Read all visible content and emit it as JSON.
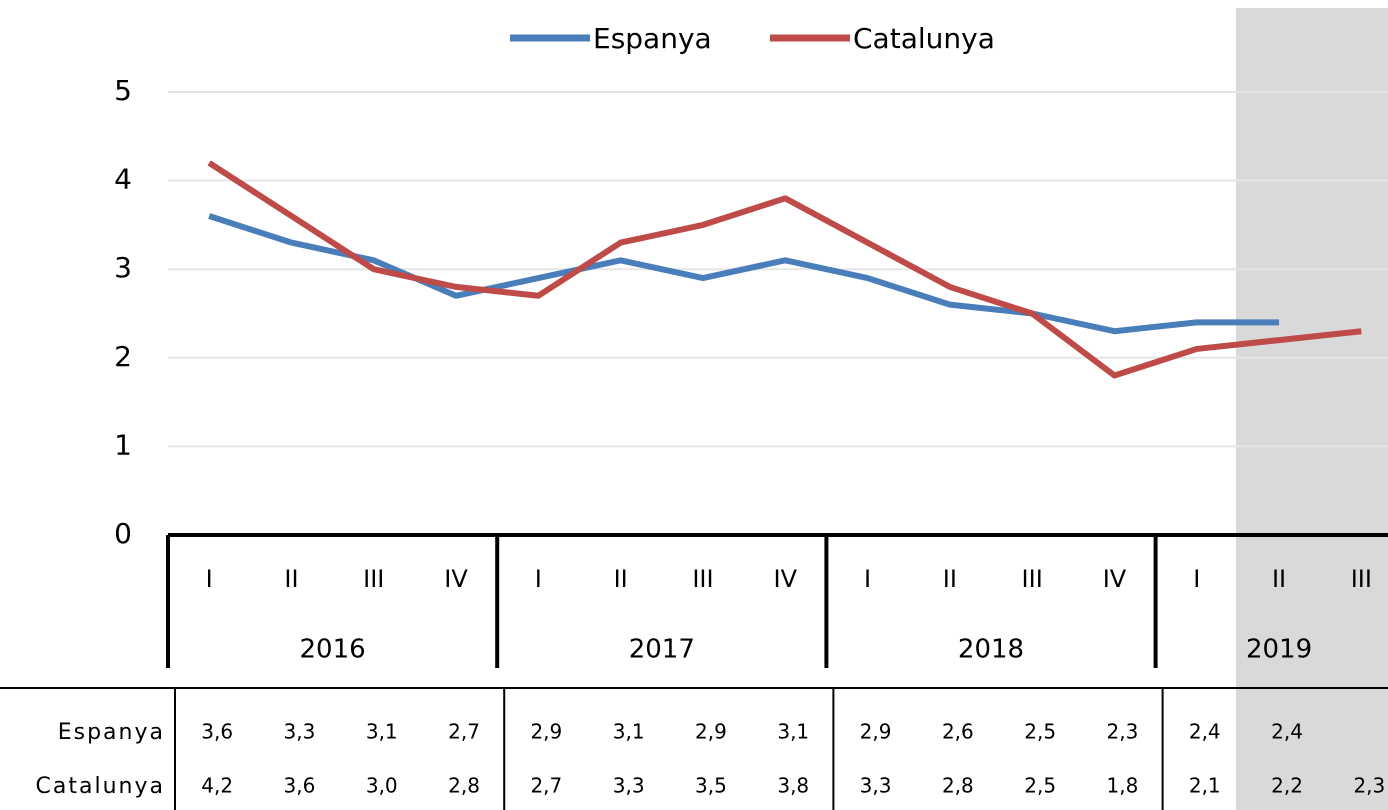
{
  "chart_data": {
    "type": "line",
    "groups": [
      {
        "label": "2016",
        "quarters": [
          "I",
          "II",
          "III",
          "IV"
        ]
      },
      {
        "label": "2017",
        "quarters": [
          "I",
          "II",
          "III",
          "IV"
        ]
      },
      {
        "label": "2018",
        "quarters": [
          "I",
          "II",
          "III",
          "IV"
        ]
      },
      {
        "label": "2019",
        "quarters": [
          "I",
          "II",
          "III"
        ]
      }
    ],
    "series": [
      {
        "name": "Espanya",
        "color": "#4a7ebb",
        "values": [
          3.6,
          3.3,
          3.1,
          2.7,
          2.9,
          3.1,
          2.9,
          3.1,
          2.9,
          2.6,
          2.5,
          2.3,
          2.4,
          2.4,
          null
        ],
        "value_labels": [
          "3,6",
          "3,3",
          "3,1",
          "2,7",
          "2,9",
          "3,1",
          "2,9",
          "3,1",
          "2,9",
          "2,6",
          "2,5",
          "2,3",
          "2,4",
          "2,4",
          null
        ]
      },
      {
        "name": "Catalunya",
        "color": "#be4b48",
        "values": [
          4.2,
          3.6,
          3.0,
          2.8,
          2.7,
          3.3,
          3.5,
          3.8,
          3.3,
          2.8,
          2.5,
          1.8,
          2.1,
          2.2,
          2.3
        ],
        "value_labels": [
          "4,2",
          "3,6",
          "3,0",
          "2,8",
          "2,7",
          "3,3",
          "3,5",
          "3,8",
          "3,3",
          "2,8",
          "2,5",
          "1,8",
          "2,1",
          "2,2",
          "2,3"
        ]
      }
    ],
    "ylim": [
      0,
      5
    ],
    "yticks": [
      0,
      1,
      2,
      3,
      4,
      5
    ],
    "grid": true,
    "legend": "top"
  }
}
